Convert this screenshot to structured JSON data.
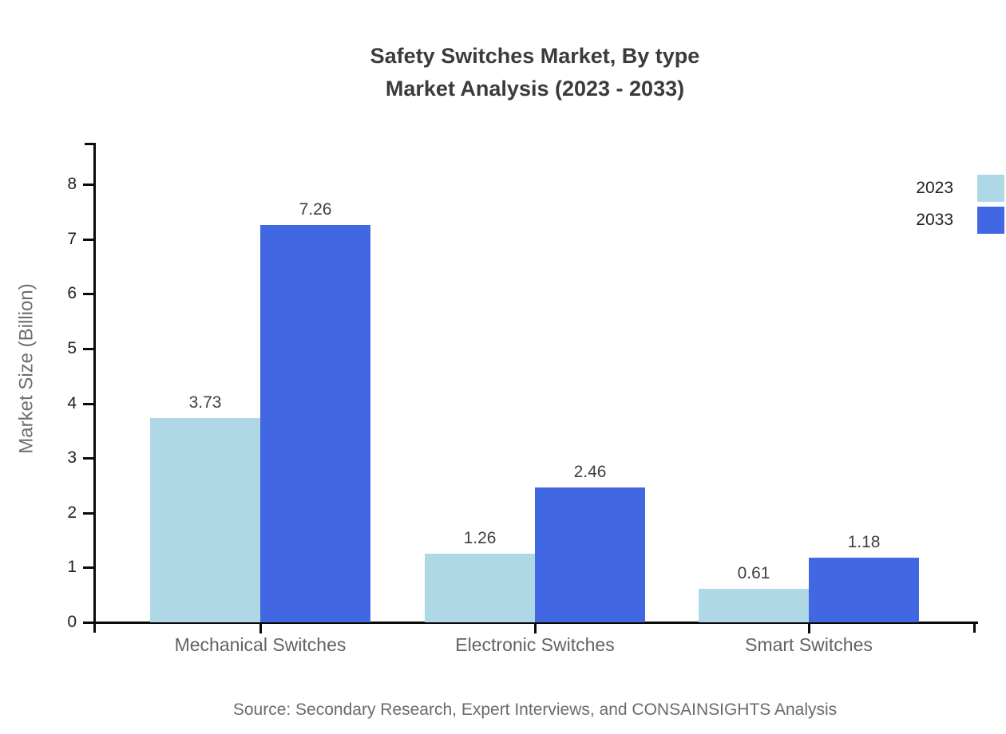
{
  "title": {
    "line1": "Safety Switches Market, By type",
    "line2": "Market Analysis (2023 - 2033)"
  },
  "chart_data": {
    "type": "bar",
    "categories": [
      "Mechanical Switches",
      "Electronic Switches",
      "Smart Switches"
    ],
    "series": [
      {
        "name": "2023",
        "color": "#aed8e6",
        "values": [
          3.73,
          1.26,
          0.61
        ]
      },
      {
        "name": "2033",
        "color": "#4267e2",
        "values": [
          7.26,
          2.46,
          1.18
        ]
      }
    ],
    "title": "Safety Switches Market, By type Market Analysis (2023 - 2033)",
    "xlabel": "",
    "ylabel": "Market Size (Billion)",
    "ylim": [
      0,
      8
    ],
    "yticks": [
      0,
      1,
      2,
      3,
      4,
      5,
      6,
      7,
      8
    ],
    "grid": false,
    "legend_position": "top-right",
    "value_labels": [
      "3.73",
      "7.26",
      "1.26",
      "2.46",
      "0.61",
      "1.18"
    ]
  },
  "source": "Source: Secondary Research, Expert Interviews, and CONSAINSIGHTS Analysis",
  "colors": {
    "axis": "#0a0a0a",
    "title_text": "#3b3b3b",
    "tick_label": "#1f1f1f",
    "value_label": "#3c4043",
    "category_label": "#5f6368",
    "muted_text": "#6b6b6b",
    "series_2023": "#aed8e6",
    "series_2033": "#4267e2"
  }
}
